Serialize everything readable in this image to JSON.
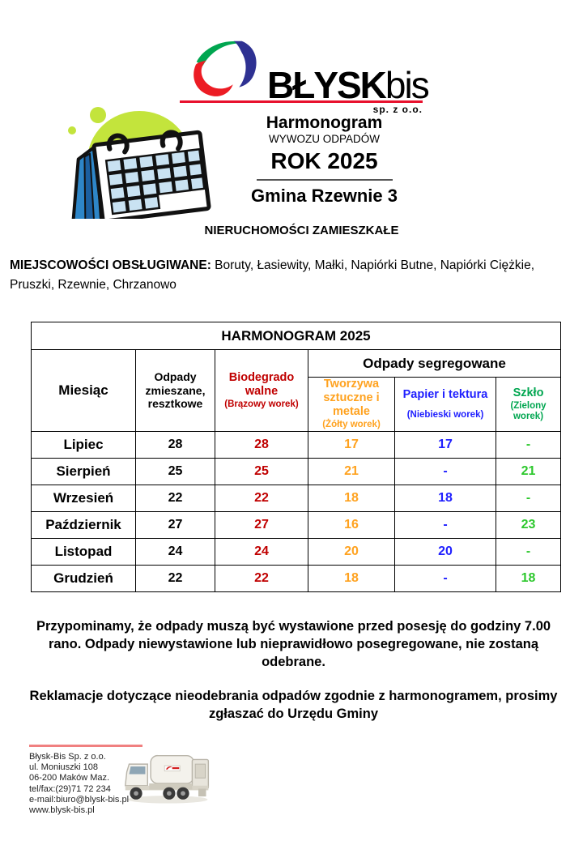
{
  "logo": {
    "brand": "BŁYSK",
    "brand_suffix": "bis",
    "subtitle": "sp. z o.o."
  },
  "icons": {
    "logo_swoosh": "three-color-swoosh",
    "calendar": "desk-calendar-clipart",
    "truck": "garbage-truck"
  },
  "header": {
    "title": "Harmonogram",
    "subtitle": "WYWOZU ODPADÓW",
    "year": "ROK 2025",
    "municipality": "Gmina Rzewnie 3",
    "property_type": "NIERUCHOMOŚCI ZAMIESZKAŁE"
  },
  "localities": {
    "label": "MIEJSCOWOŚCI OBSŁUGIWANE:",
    "list": " Boruty, Łasiewity, Małki, Napiórki Butne, Napiórki Ciężkie, Pruszki, Rzewnie, Chrzanowo"
  },
  "table": {
    "title": "HARMONOGRAM 2025",
    "group_header": "Odpady segregowane",
    "columns": [
      {
        "key": "month",
        "label": "Miesiąc",
        "sub": "",
        "header_color": "#000000",
        "value_color": "#000000"
      },
      {
        "key": "mixed",
        "label": "Odpady zmieszane, resztkowe",
        "sub": "",
        "header_color": "#000000",
        "value_color": "#000000"
      },
      {
        "key": "bio",
        "label": "Biodegrado walne",
        "sub": "(Brązowy worek)",
        "header_color": "#C00000",
        "value_color": "#C00000"
      },
      {
        "key": "plastic",
        "label": "Tworzywa sztuczne i metale",
        "sub": "(Żółty worek)",
        "header_color": "#FFA21F",
        "value_color": "#FFA21F"
      },
      {
        "key": "paper",
        "label": "Papier i tektura",
        "sub": "(Niebieski worek)",
        "header_color": "#2020FF",
        "value_color": "#2020FF"
      },
      {
        "key": "glass",
        "label": "Szkło",
        "sub": "(Zielony worek)",
        "header_color": "#00A650",
        "value_color": "#2DC82D"
      }
    ],
    "rows": [
      {
        "month": "Lipiec",
        "mixed": "28",
        "bio": "28",
        "plastic": "17",
        "paper": "17",
        "glass": "-"
      },
      {
        "month": "Sierpień",
        "mixed": "25",
        "bio": "25",
        "plastic": "21",
        "paper": "-",
        "glass": "21"
      },
      {
        "month": "Wrzesień",
        "mixed": "22",
        "bio": "22",
        "plastic": "18",
        "paper": "18",
        "glass": "-"
      },
      {
        "month": "Październik",
        "mixed": "27",
        "bio": "27",
        "plastic": "16",
        "paper": "-",
        "glass": "23"
      },
      {
        "month": "Listopad",
        "mixed": "24",
        "bio": "24",
        "plastic": "20",
        "paper": "20",
        "glass": "-"
      },
      {
        "month": "Grudzień",
        "mixed": "22",
        "bio": "22",
        "plastic": "18",
        "paper": "-",
        "glass": "18"
      }
    ]
  },
  "notes": {
    "reminder": "Przypominamy, że odpady muszą być wystawione przed posesję do godziny 7.00 rano. Odpady niewystawione lub nieprawidłowo posegregowane, nie zostaną odebrane.",
    "complaints": "Reklamacje dotyczące nieodebrania odpadów zgodnie z harmonogramem, prosimy zgłaszać do Urzędu Gminy"
  },
  "footer": {
    "lines": [
      "Błysk-Bis Sp. z o.o.",
      "ul. Moniuszki 108",
      "06-200 Maków Maz.",
      "tel/fax:(29)71 72 234",
      "e-mail:biuro@blysk-bis.pl",
      "www.blysk-bis.pl"
    ]
  },
  "colors": {
    "bio_red": "#C00000",
    "plastic_orange": "#FFA21F",
    "paper_blue": "#2020FF",
    "glass_green_header": "#00A650",
    "glass_green_value": "#2DC82D",
    "logo_red": "#EC1C24",
    "logo_green": "#00A650",
    "logo_blue": "#2E3192",
    "logo_underline": "#E8112D",
    "footer_line_pink": "#F08080",
    "blob_green": "#C3E43C",
    "calendar_blue": "#2E86C8"
  }
}
